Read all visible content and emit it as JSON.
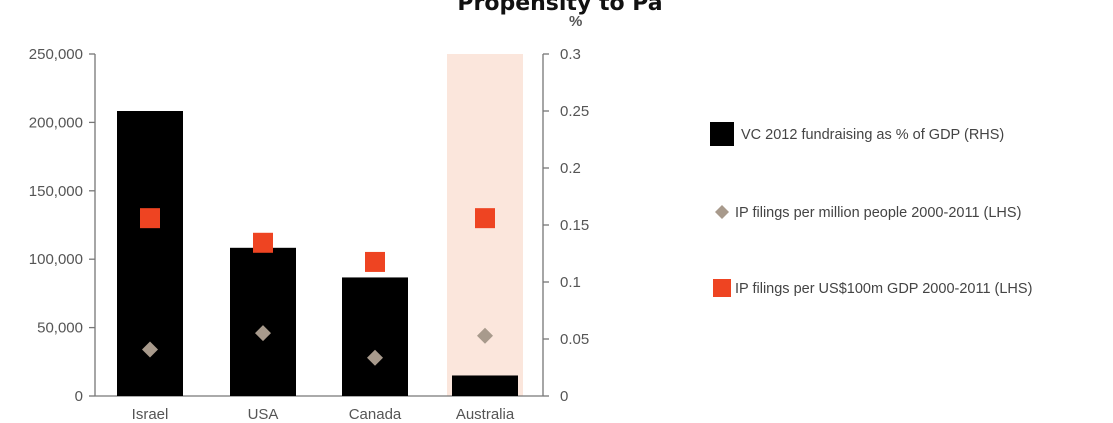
{
  "chart_data": {
    "type": "bar",
    "title": "Propensity to Pa",
    "categories": [
      "Israel",
      "USA",
      "Canada",
      "Australia"
    ],
    "highlight_category": "Australia",
    "left_axis": {
      "label": "",
      "ylim": [
        0,
        250000
      ],
      "ticks": [
        0,
        50000,
        100000,
        150000,
        200000,
        250000
      ],
      "tick_labels": [
        "0",
        "50,000",
        "100,000",
        "150,000",
        "200,000",
        "250,000"
      ]
    },
    "right_axis": {
      "unit_label": "%",
      "ylim": [
        0,
        0.3
      ],
      "ticks": [
        0,
        0.05,
        0.1,
        0.15,
        0.2,
        0.25,
        0.3
      ],
      "tick_labels": [
        "0",
        "0.05",
        "0.1",
        "0.15",
        "0.2",
        "0.25",
        "0.3"
      ]
    },
    "series": [
      {
        "name": "VC 2012 fundraising as % of GDP (RHS)",
        "kind": "bar",
        "axis": "right",
        "color": "#000000",
        "values": [
          0.25,
          0.13,
          0.104,
          0.018
        ]
      },
      {
        "name": "IP filings per million people 2000-2011 (LHS)",
        "kind": "diamond",
        "axis": "left",
        "color": "#a89a8c",
        "values": [
          34000,
          46000,
          28000,
          44000
        ]
      },
      {
        "name": "IP filings per US$100m GDP 2000-2011 (LHS)",
        "kind": "square",
        "axis": "left",
        "color": "#ee4422",
        "values": [
          130000,
          112000,
          98000,
          130000
        ]
      }
    ],
    "grid": false,
    "legend_position": "right",
    "colors": {
      "highlight_band": "#fbe6dc",
      "axis": "#777777",
      "text": "#555555"
    }
  }
}
